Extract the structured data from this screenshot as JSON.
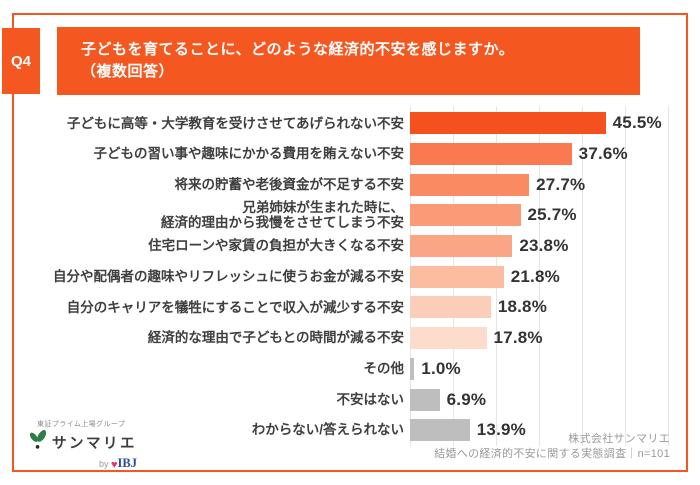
{
  "accent_color": "#F4571F",
  "header": {
    "question_no": "Q4",
    "title_line1": "子どもを育てることに、どのような経済的不安を感じますか。",
    "title_line2": "（複数回答）"
  },
  "chart_data": {
    "type": "bar",
    "orientation": "horizontal",
    "unit": "%",
    "grid": true,
    "xlim": [
      0,
      60
    ],
    "gridline_step": 10,
    "gridline_color": "#E6E6E6",
    "categories": [
      "子どもに高等・大学教育を受けさせてあげられない不安",
      "子どもの習い事や趣味にかかる費用を賄えない不安",
      "将来の貯蓄や老後資金が不足する不安",
      "兄弟姉妹が生まれた時に、\n経済的理由から我慢をさせてしまう不安",
      "住宅ローンや家賃の負担が大きくなる不安",
      "自分や配偶者の趣味やリフレッシュに使うお金が減る不安",
      "自分のキャリアを犠牲にすることで収入が減少する不安",
      "経済的な理由で子どもとの時間が減る不安",
      "その他",
      "不安はない",
      "わからない/答えられない"
    ],
    "values": [
      45.5,
      37.6,
      27.7,
      25.7,
      23.8,
      21.8,
      18.8,
      17.8,
      1.0,
      6.9,
      13.9
    ],
    "value_labels": [
      "45.5%",
      "37.6%",
      "27.7%",
      "25.7%",
      "23.8%",
      "21.8%",
      "18.8%",
      "17.8%",
      "1.0%",
      "6.9%",
      "13.9%"
    ],
    "bar_colors": [
      "#F4511E",
      "#F97950",
      "#FA8A61",
      "#FA9A77",
      "#FAA686",
      "#FBBCA0",
      "#FCCDB8",
      "#FDDCCC",
      "#BEBEBE",
      "#BEBEBE",
      "#BEBEBE"
    ]
  },
  "logo": {
    "group_text": "東証プライム上場グループ",
    "brand": "サンマリエ",
    "by": "by",
    "ibj": "IBJ",
    "brand_green": "#2E7D46",
    "heart_color": "#E8336D",
    "ibj_blue": "#2B4C9B"
  },
  "footer": {
    "company": "株式会社サンマリエ",
    "survey": "結婚への経済的不安に関する実態調査｜n=101"
  }
}
